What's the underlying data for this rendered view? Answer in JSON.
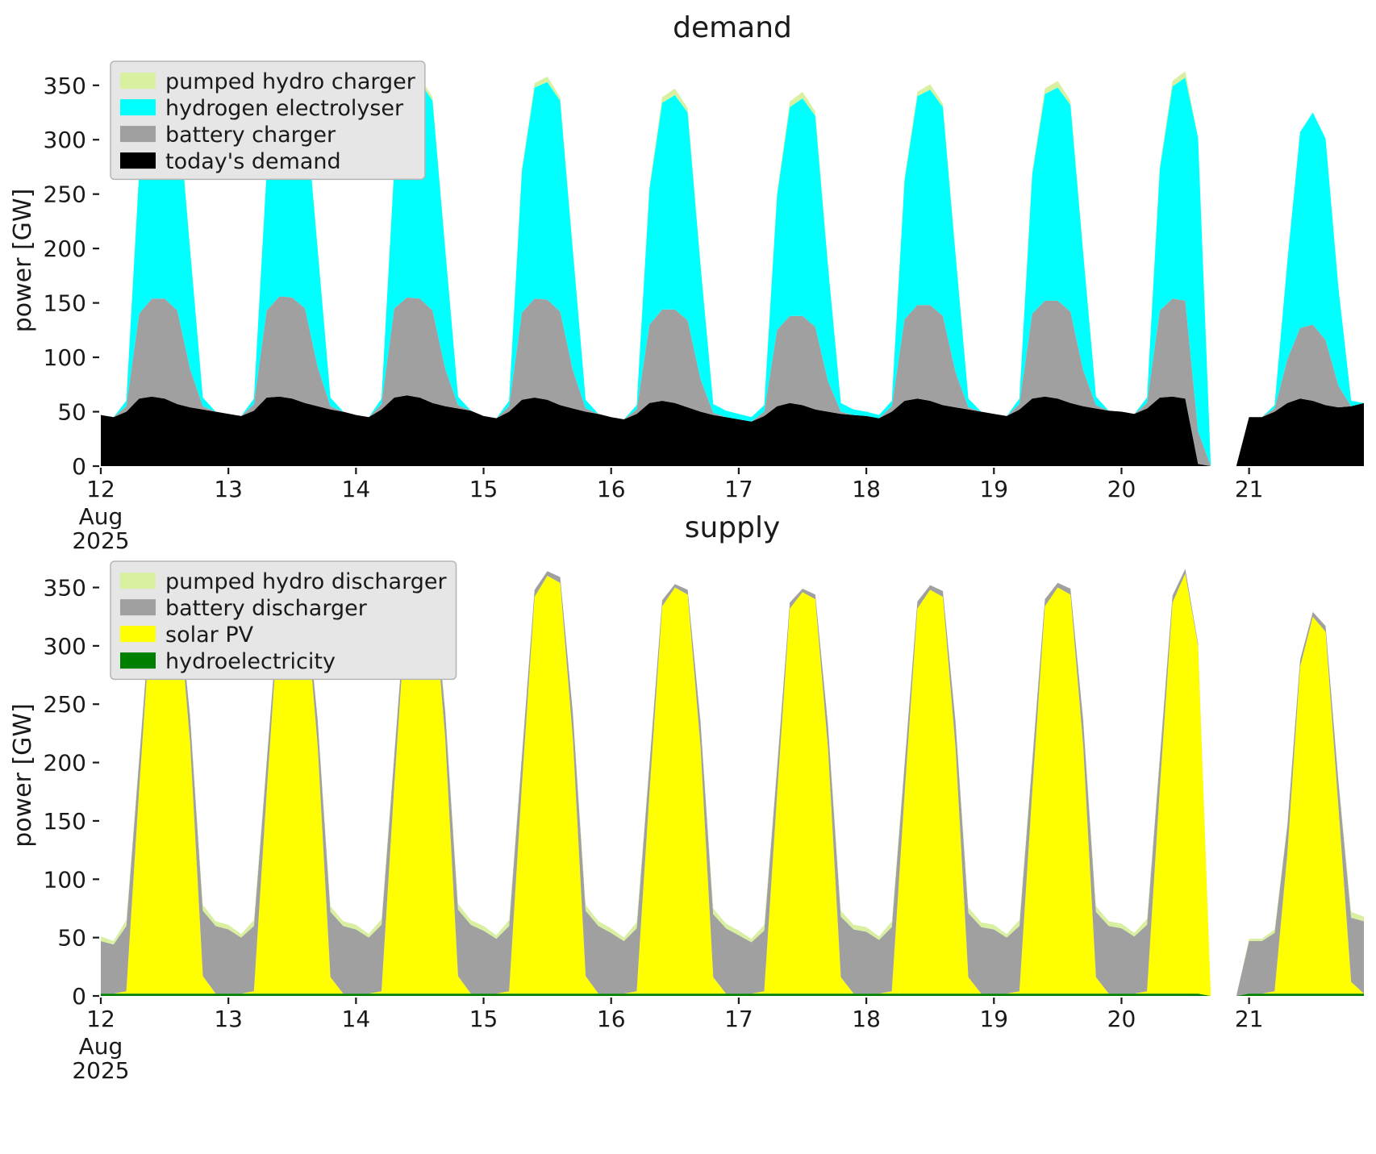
{
  "figure": {
    "background": "#ffffff",
    "text_color": "#1a1a1a",
    "legend_bg": "#e6e6e6",
    "legend_border": "#b5b5b5"
  },
  "chart_data": [
    {
      "type": "area",
      "stacked": true,
      "title": "demand",
      "ylabel": "power [GW]",
      "x_start": 12.0,
      "x_step": 0.1,
      "xlim": [
        12,
        21.9
      ],
      "ylim": [
        0,
        378
      ],
      "y_ticks": [
        0,
        50,
        100,
        150,
        200,
        250,
        300,
        350
      ],
      "x_ticks": {
        "values": [
          12,
          13,
          14,
          15,
          16,
          17,
          18,
          19,
          20,
          21
        ],
        "labels": [
          "12",
          "13",
          "14",
          "15",
          "16",
          "17",
          "18",
          "19",
          "20",
          "21"
        ]
      },
      "x_sub_labels": [
        "Aug",
        "2025"
      ],
      "legend_order": "reverse",
      "series": [
        {
          "name": "today's demand",
          "color": "#000000",
          "values": [
            47,
            45,
            50,
            62,
            64,
            62,
            57,
            54,
            52,
            50,
            48,
            46,
            51,
            63,
            64,
            62,
            58,
            55,
            52,
            50,
            47,
            45,
            52,
            63,
            65,
            63,
            58,
            55,
            53,
            51,
            46,
            44,
            50,
            61,
            63,
            61,
            56,
            53,
            50,
            48,
            45,
            43,
            48,
            58,
            60,
            58,
            54,
            50,
            47,
            45,
            43,
            41,
            46,
            55,
            58,
            56,
            52,
            50,
            48,
            47,
            46,
            44,
            50,
            60,
            62,
            60,
            56,
            54,
            52,
            50,
            48,
            46,
            52,
            62,
            64,
            62,
            58,
            55,
            53,
            51,
            50,
            48,
            53,
            63,
            64,
            62,
            2,
            0,
            0,
            0,
            45,
            45,
            50,
            58,
            62,
            60,
            56,
            54,
            55,
            58
          ]
        },
        {
          "name": "battery charger",
          "color": "#a0a0a0",
          "values": [
            0,
            0,
            5,
            78,
            90,
            92,
            86,
            35,
            3,
            0,
            0,
            0,
            6,
            80,
            92,
            93,
            87,
            36,
            3,
            0,
            0,
            0,
            5,
            82,
            90,
            91,
            85,
            34,
            3,
            0,
            0,
            0,
            5,
            80,
            91,
            92,
            86,
            35,
            3,
            0,
            0,
            0,
            4,
            72,
            84,
            86,
            80,
            30,
            2,
            0,
            0,
            0,
            4,
            70,
            80,
            82,
            76,
            28,
            2,
            0,
            0,
            0,
            5,
            75,
            86,
            88,
            82,
            32,
            2,
            0,
            0,
            0,
            5,
            78,
            88,
            90,
            84,
            33,
            3,
            0,
            0,
            0,
            5,
            80,
            90,
            90,
            30,
            0,
            0,
            0,
            0,
            0,
            3,
            40,
            65,
            70,
            60,
            20,
            0,
            0
          ]
        },
        {
          "name": "hydrogen electrolyser",
          "color": "#00ffff",
          "values": [
            0,
            0,
            5,
            130,
            195,
            202,
            196,
            110,
            8,
            0,
            0,
            0,
            5,
            128,
            190,
            195,
            190,
            108,
            8,
            0,
            0,
            0,
            5,
            130,
            192,
            199,
            193,
            110,
            8,
            0,
            0,
            0,
            5,
            130,
            194,
            200,
            194,
            110,
            8,
            0,
            0,
            0,
            4,
            125,
            190,
            197,
            191,
            105,
            8,
            6,
            5,
            4,
            6,
            124,
            192,
            200,
            194,
            106,
            8,
            5,
            4,
            3,
            5,
            128,
            192,
            198,
            192,
            108,
            8,
            0,
            0,
            0,
            5,
            128,
            190,
            196,
            190,
            108,
            8,
            0,
            0,
            0,
            5,
            130,
            195,
            205,
            270,
            0,
            0,
            0,
            0,
            0,
            3,
            90,
            180,
            195,
            185,
            90,
            5,
            0
          ]
        },
        {
          "name": "pumped hydro charger",
          "color": "#d8f0a0",
          "values": [
            0,
            0,
            0,
            2,
            5,
            6,
            4,
            1,
            0,
            0,
            0,
            0,
            0,
            1,
            3,
            4,
            3,
            1,
            0,
            0,
            0,
            0,
            0,
            2,
            4,
            5,
            3,
            1,
            0,
            0,
            0,
            0,
            0,
            2,
            4,
            5,
            3,
            1,
            0,
            0,
            0,
            0,
            0,
            2,
            5,
            6,
            4,
            1,
            0,
            0,
            0,
            0,
            0,
            2,
            5,
            6,
            4,
            1,
            0,
            0,
            0,
            0,
            0,
            2,
            4,
            5,
            3,
            1,
            0,
            0,
            0,
            0,
            0,
            2,
            5,
            6,
            4,
            1,
            0,
            0,
            0,
            0,
            0,
            2,
            5,
            6,
            0,
            0,
            0,
            0,
            0,
            0,
            0,
            0,
            0,
            0,
            0,
            0,
            0,
            0
          ]
        }
      ]
    },
    {
      "type": "area",
      "stacked": true,
      "title": "supply",
      "ylabel": "power [GW]",
      "x_start": 12.0,
      "x_step": 0.1,
      "xlim": [
        12,
        21.9
      ],
      "ylim": [
        0,
        378
      ],
      "y_ticks": [
        0,
        50,
        100,
        150,
        200,
        250,
        300,
        350
      ],
      "x_ticks": {
        "values": [
          12,
          13,
          14,
          15,
          16,
          17,
          18,
          19,
          20,
          21
        ],
        "labels": [
          "12",
          "13",
          "14",
          "15",
          "16",
          "17",
          "18",
          "19",
          "20",
          "21"
        ]
      },
      "x_sub_labels": [
        "Aug",
        "2025"
      ],
      "legend_order": "reverse",
      "series": [
        {
          "name": "hydroelectricity",
          "color": "#008000",
          "values": [
            2,
            2,
            2,
            2,
            2,
            2,
            2,
            2,
            2,
            2,
            2,
            2,
            2,
            2,
            2,
            2,
            2,
            2,
            2,
            2,
            2,
            2,
            2,
            2,
            2,
            2,
            2,
            2,
            2,
            2,
            2,
            2,
            2,
            2,
            2,
            2,
            2,
            2,
            2,
            2,
            2,
            2,
            2,
            2,
            2,
            2,
            2,
            2,
            2,
            2,
            2,
            2,
            2,
            2,
            2,
            2,
            2,
            2,
            2,
            2,
            2,
            2,
            2,
            2,
            2,
            2,
            2,
            2,
            2,
            2,
            2,
            2,
            2,
            2,
            2,
            2,
            2,
            2,
            2,
            2,
            2,
            2,
            2,
            2,
            2,
            2,
            2,
            0,
            0,
            0,
            2,
            2,
            2,
            2,
            2,
            2,
            2,
            2,
            2,
            2
          ]
        },
        {
          "name": "solar PV",
          "color": "#ffff00",
          "values": [
            0,
            0,
            2,
            175,
            335,
            350,
            344,
            215,
            15,
            0,
            0,
            0,
            2,
            172,
            332,
            348,
            342,
            212,
            14,
            0,
            0,
            0,
            2,
            178,
            340,
            358,
            352,
            218,
            15,
            0,
            0,
            0,
            2,
            178,
            340,
            358,
            352,
            218,
            15,
            0,
            0,
            0,
            2,
            172,
            332,
            348,
            342,
            212,
            14,
            0,
            0,
            0,
            2,
            170,
            330,
            344,
            338,
            210,
            14,
            0,
            0,
            0,
            2,
            171,
            330,
            346,
            340,
            210,
            14,
            0,
            0,
            0,
            2,
            172,
            332,
            348,
            342,
            212,
            14,
            0,
            0,
            0,
            2,
            175,
            335,
            360,
            298,
            0,
            0,
            0,
            0,
            0,
            2,
            120,
            280,
            323,
            310,
            160,
            10,
            0
          ]
        },
        {
          "name": "battery discharger",
          "color": "#a0a0a0",
          "values": [
            45,
            42,
            56,
            25,
            6,
            4,
            5,
            22,
            56,
            58,
            55,
            48,
            56,
            26,
            6,
            4,
            5,
            22,
            56,
            58,
            55,
            48,
            57,
            26,
            6,
            4,
            5,
            23,
            57,
            59,
            54,
            47,
            56,
            25,
            6,
            4,
            5,
            22,
            56,
            58,
            52,
            45,
            54,
            24,
            5,
            3,
            4,
            21,
            54,
            56,
            50,
            44,
            52,
            23,
            5,
            3,
            4,
            20,
            52,
            55,
            53,
            46,
            55,
            25,
            6,
            4,
            5,
            22,
            55,
            57,
            55,
            48,
            56,
            26,
            6,
            4,
            5,
            22,
            56,
            58,
            56,
            49,
            57,
            26,
            6,
            4,
            2,
            0,
            0,
            0,
            45,
            45,
            50,
            24,
            6,
            4,
            5,
            22,
            55,
            62
          ]
        },
        {
          "name": "pumped hydro discharger",
          "color": "#d8f0a0",
          "values": [
            4,
            3,
            5,
            2,
            0,
            0,
            0,
            2,
            5,
            4,
            4,
            3,
            5,
            2,
            0,
            0,
            0,
            2,
            5,
            4,
            4,
            3,
            5,
            2,
            0,
            0,
            0,
            2,
            5,
            4,
            4,
            3,
            5,
            2,
            0,
            0,
            0,
            2,
            5,
            4,
            4,
            3,
            5,
            2,
            0,
            0,
            0,
            2,
            5,
            4,
            4,
            3,
            5,
            2,
            0,
            0,
            0,
            2,
            5,
            4,
            4,
            3,
            5,
            2,
            0,
            0,
            0,
            2,
            5,
            4,
            4,
            3,
            5,
            2,
            0,
            0,
            0,
            2,
            5,
            4,
            4,
            3,
            5,
            2,
            0,
            0,
            0,
            0,
            0,
            0,
            2,
            2,
            3,
            2,
            0,
            0,
            0,
            2,
            5,
            4
          ]
        }
      ]
    }
  ]
}
